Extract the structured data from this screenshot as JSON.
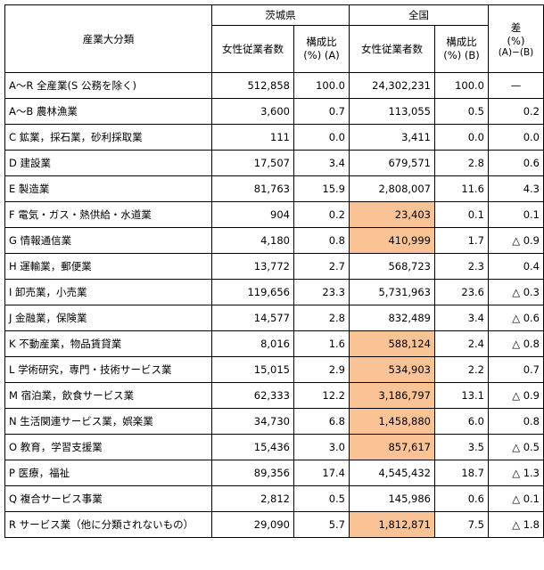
{
  "header": {
    "category": "産業大分類",
    "ibaraki": "茨城県",
    "national": "全国",
    "diff_line1": "差",
    "diff_line2": "(%)",
    "diff_line3": "(A)−(B)",
    "female_workers": "女性従業者数",
    "ratio_a_line1": "構成比",
    "ratio_a_line2": "(%) (A)",
    "ratio_b_line1": "構成比",
    "ratio_b_line2": "(%) (B)"
  },
  "rows": [
    {
      "label": "A～R 全産業(S 公務を除く)",
      "ibaraki_workers": "512,858",
      "ratio_a": "100.0",
      "national_workers": "24,302,231",
      "ratio_b": "100.0",
      "diff": "—"
    },
    {
      "label": "A～B 農林漁業",
      "ibaraki_workers": "3,600",
      "ratio_a": "0.7",
      "national_workers": "113,055",
      "ratio_b": "0.5",
      "diff": "0.2"
    },
    {
      "label": "C 鉱業，採石業，砂利採取業",
      "ibaraki_workers": "111",
      "ratio_a": "0.0",
      "national_workers": "3,411",
      "ratio_b": "0.0",
      "diff": "0.0"
    },
    {
      "label": "D 建設業",
      "ibaraki_workers": "17,507",
      "ratio_a": "3.4",
      "national_workers": "679,571",
      "ratio_b": "2.8",
      "diff": "0.6"
    },
    {
      "label": "E 製造業",
      "ibaraki_workers": "81,763",
      "ratio_a": "15.9",
      "national_workers": "2,808,007",
      "ratio_b": "11.6",
      "diff": "4.3"
    },
    {
      "label": "F 電気・ガス・熱供給・水道業",
      "ibaraki_workers": "904",
      "ratio_a": "0.2",
      "national_workers": "23,403",
      "ratio_b": "0.1",
      "diff": "0.1"
    },
    {
      "label": "G 情報通信業",
      "ibaraki_workers": "4,180",
      "ratio_a": "0.8",
      "national_workers": "410,999",
      "ratio_b": "1.7",
      "diff": "△ 0.9"
    },
    {
      "label": "H 運輸業，郵便業",
      "ibaraki_workers": "13,772",
      "ratio_a": "2.7",
      "national_workers": "568,723",
      "ratio_b": "2.3",
      "diff": "0.4"
    },
    {
      "label": "I 卸売業，小売業",
      "ibaraki_workers": "119,656",
      "ratio_a": "23.3",
      "national_workers": "5,731,963",
      "ratio_b": "23.6",
      "diff": "△ 0.3"
    },
    {
      "label": "J 金融業，保険業",
      "ibaraki_workers": "14,577",
      "ratio_a": "2.8",
      "national_workers": "832,489",
      "ratio_b": "3.4",
      "diff": "△ 0.6"
    },
    {
      "label": "K 不動産業，物品賃貸業",
      "ibaraki_workers": "8,016",
      "ratio_a": "1.6",
      "national_workers": "588,124",
      "ratio_b": "2.4",
      "diff": "△ 0.8"
    },
    {
      "label": "L 学術研究，専門・技術サービス業",
      "ibaraki_workers": "15,015",
      "ratio_a": "2.9",
      "national_workers": "534,903",
      "ratio_b": "2.2",
      "diff": "0.7"
    },
    {
      "label": "M 宿泊業，飲食サービス業",
      "ibaraki_workers": "62,333",
      "ratio_a": "12.2",
      "national_workers": "3,186,797",
      "ratio_b": "13.1",
      "diff": "△ 0.9"
    },
    {
      "label": "N 生活関連サービス業，娯楽業",
      "ibaraki_workers": "34,730",
      "ratio_a": "6.8",
      "national_workers": "1,458,880",
      "ratio_b": "6.0",
      "diff": "0.8"
    },
    {
      "label": "O 教育，学習支援業",
      "ibaraki_workers": "15,436",
      "ratio_a": "3.0",
      "national_workers": "857,617",
      "ratio_b": "3.5",
      "diff": "△ 0.5"
    },
    {
      "label": "P 医療，福祉",
      "ibaraki_workers": "89,356",
      "ratio_a": "17.4",
      "national_workers": "4,545,432",
      "ratio_b": "18.7",
      "diff": "△ 1.3"
    },
    {
      "label": "Q 複合サービス事業",
      "ibaraki_workers": "2,812",
      "ratio_a": "0.5",
      "national_workers": "145,986",
      "ratio_b": "0.6",
      "diff": "△ 0.1"
    },
    {
      "label": "R サービス業（他に分類されないもの）",
      "ibaraki_workers": "29,090",
      "ratio_a": "5.7",
      "national_workers": "1,812,871",
      "ratio_b": "7.5",
      "diff": "△ 1.8"
    }
  ],
  "highlight_color": "#f9c396"
}
